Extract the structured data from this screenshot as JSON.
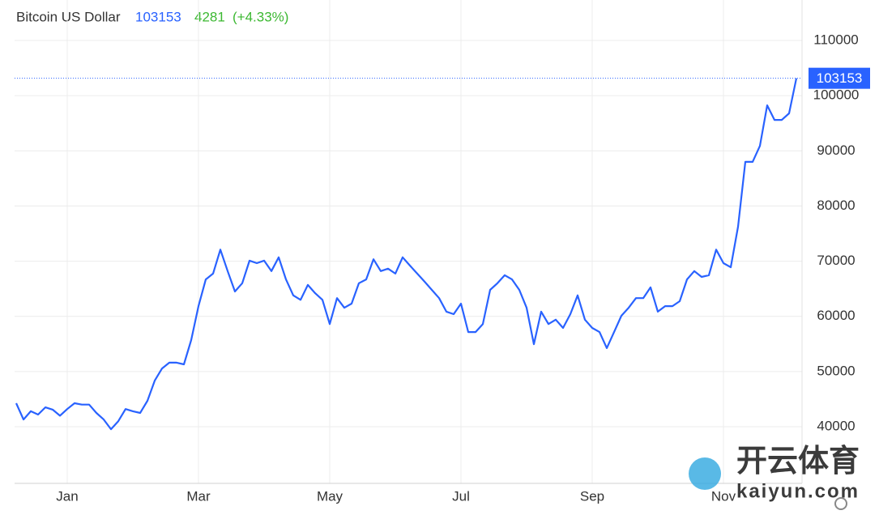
{
  "chart_data": {
    "type": "line",
    "title": "Bitcoin US Dollar",
    "last_price": 103153,
    "change": 4281,
    "change_pct": "(+4.33%)",
    "watermark": [
      "开云体育",
      "kaiyun.com"
    ],
    "categories": [
      null,
      null,
      null,
      null,
      null,
      null,
      null,
      "Jan",
      null,
      null,
      null,
      null,
      null,
      null,
      null,
      null,
      null,
      null,
      null,
      null,
      null,
      null,
      null,
      null,
      null,
      "Mar",
      null,
      null,
      null,
      null,
      null,
      null,
      null,
      null,
      null,
      null,
      null,
      null,
      null,
      null,
      null,
      null,
      null,
      "May",
      null,
      null,
      null,
      null,
      null,
      null,
      null,
      null,
      null,
      null,
      null,
      null,
      null,
      null,
      null,
      null,
      null,
      "Jul",
      null,
      null,
      null,
      null,
      null,
      null,
      null,
      null,
      null,
      null,
      null,
      null,
      null,
      null,
      null,
      null,
      null,
      "Sep",
      null,
      null,
      null,
      null,
      null,
      null,
      null,
      null,
      null,
      null,
      null,
      null,
      null,
      null,
      null,
      null,
      null,
      "Nov",
      null,
      null,
      null,
      null,
      null,
      null,
      null,
      null,
      null,
      null
    ],
    "series": [
      {
        "name": "Bitcoin US Dollar",
        "color": "#2962ff",
        "values": [
          44250,
          41300,
          42800,
          42200,
          43500,
          43100,
          42000,
          43200,
          44250,
          44000,
          44000,
          42500,
          41300,
          39550,
          41000,
          43200,
          42800,
          42500,
          44700,
          48350,
          50550,
          51600,
          51600,
          51300,
          55700,
          61850,
          66700,
          67750,
          72100,
          68200,
          64500,
          66000,
          70100,
          69650,
          70100,
          68200,
          70700,
          66700,
          63800,
          63000,
          65700,
          64200,
          63000,
          58600,
          63300,
          61550,
          62300,
          66000,
          66700,
          70350,
          68200,
          68650,
          67750,
          70700,
          69200,
          67750,
          66300,
          64800,
          63300,
          60850,
          60400,
          62300,
          57150,
          57150,
          58600,
          64800,
          66000,
          67450,
          66700,
          64800,
          61550,
          54950,
          60850,
          58600,
          59400,
          57900,
          60400,
          63800,
          59400,
          57900,
          57150,
          54250,
          57150,
          60100,
          61550,
          63300,
          63300,
          65250,
          60850,
          61850,
          61850,
          62750,
          66700,
          68200,
          67150,
          67450,
          72100,
          69650,
          68900,
          76250,
          88000,
          88000,
          90900,
          98250,
          95600,
          95600,
          96800,
          103153
        ]
      }
    ],
    "ylim": [
      29725,
      117340
    ],
    "yticks": [
      40000,
      50000,
      60000,
      70000,
      80000,
      90000,
      100000,
      110000
    ],
    "grid": true,
    "header_colors": {
      "price": "#2962ff",
      "change": "#3cb832"
    }
  }
}
